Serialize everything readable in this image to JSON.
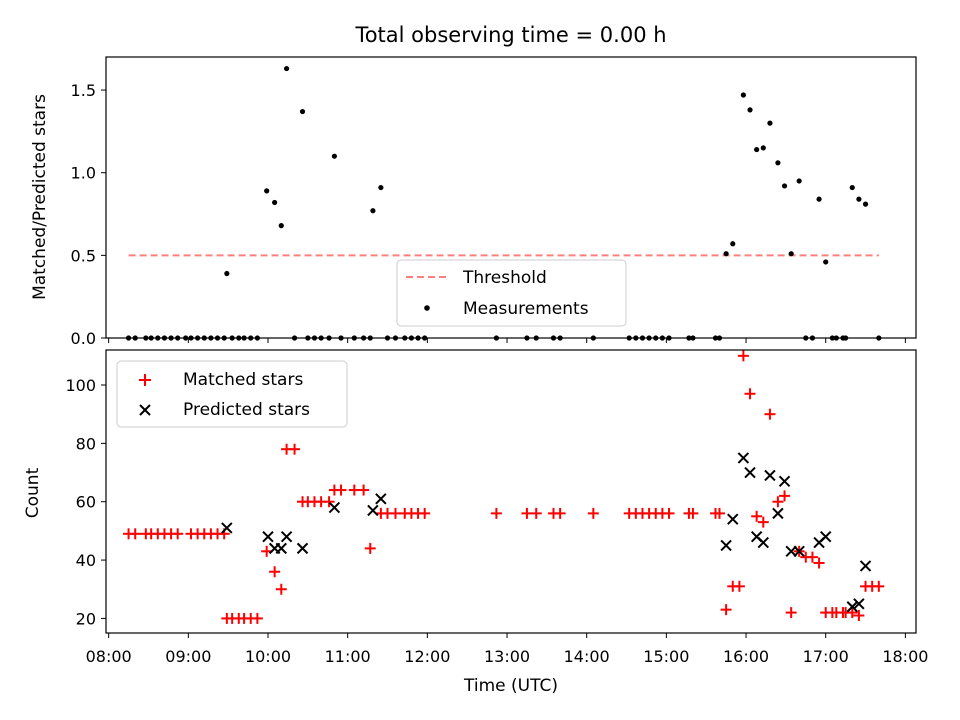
{
  "chart_data": [
    {
      "type": "scatter",
      "title": "Total observing time = 0.00 h",
      "xlabel": "",
      "ylabel": "Matched/Predicted stars",
      "ylim": [
        0,
        1.7
      ],
      "yticks": [
        0.0,
        0.5,
        1.0,
        1.5
      ],
      "ytick_labels": [
        "0.0",
        "0.5",
        "1.0",
        "1.5"
      ],
      "legend": {
        "location": "lower-center",
        "entries": [
          "Threshold",
          "Measurements"
        ]
      },
      "threshold": {
        "name": "Threshold",
        "value": 0.5,
        "x_range": [
          "08:15",
          "17:40"
        ],
        "color": "#ff7f7f",
        "style": "dashed"
      },
      "series": [
        {
          "name": "Measurements",
          "color": "#000000",
          "marker": "dot",
          "points": [
            [
              "08:15",
              0
            ],
            [
              "08:20",
              0
            ],
            [
              "08:28",
              0
            ],
            [
              "08:32",
              0
            ],
            [
              "08:37",
              0
            ],
            [
              "08:42",
              0
            ],
            [
              "08:47",
              0
            ],
            [
              "08:52",
              0
            ],
            [
              "08:58",
              0
            ],
            [
              "09:02",
              0
            ],
            [
              "09:07",
              0
            ],
            [
              "09:12",
              0
            ],
            [
              "09:17",
              0
            ],
            [
              "09:22",
              0
            ],
            [
              "09:27",
              0
            ],
            [
              "09:29",
              0.39
            ],
            [
              "09:33",
              0
            ],
            [
              "09:38",
              0
            ],
            [
              "09:42",
              0
            ],
            [
              "09:47",
              0
            ],
            [
              "09:52",
              0
            ],
            [
              "09:59",
              0.89
            ],
            [
              "10:05",
              0.82
            ],
            [
              "10:10",
              0.68
            ],
            [
              "10:14",
              1.63
            ],
            [
              "10:20",
              0
            ],
            [
              "10:26",
              1.37
            ],
            [
              "10:30",
              0
            ],
            [
              "10:35",
              0
            ],
            [
              "10:40",
              0
            ],
            [
              "10:46",
              0
            ],
            [
              "10:50",
              1.1
            ],
            [
              "10:55",
              0
            ],
            [
              "11:05",
              0
            ],
            [
              "11:12",
              0
            ],
            [
              "11:17",
              0
            ],
            [
              "11:19",
              0.77
            ],
            [
              "11:25",
              0.91
            ],
            [
              "11:30",
              0
            ],
            [
              "11:36",
              0
            ],
            [
              "11:43",
              0
            ],
            [
              "11:48",
              0
            ],
            [
              "11:53",
              0
            ],
            [
              "11:58",
              0
            ],
            [
              "12:52",
              0
            ],
            [
              "13:15",
              0
            ],
            [
              "13:22",
              0
            ],
            [
              "13:35",
              0
            ],
            [
              "13:40",
              0
            ],
            [
              "14:05",
              0
            ],
            [
              "14:32",
              0
            ],
            [
              "14:37",
              0
            ],
            [
              "14:42",
              0
            ],
            [
              "14:47",
              0
            ],
            [
              "14:52",
              0
            ],
            [
              "14:57",
              0
            ],
            [
              "15:02",
              0
            ],
            [
              "15:17",
              0
            ],
            [
              "15:20",
              0
            ],
            [
              "15:37",
              0
            ],
            [
              "15:40",
              0
            ],
            [
              "15:45",
              0.51
            ],
            [
              "15:50",
              0.57
            ],
            [
              "15:58",
              1.47
            ],
            [
              "16:03",
              1.38
            ],
            [
              "16:08",
              1.14
            ],
            [
              "16:13",
              1.15
            ],
            [
              "16:18",
              1.3
            ],
            [
              "16:24",
              1.06
            ],
            [
              "16:29",
              0.92
            ],
            [
              "16:34",
              0.51
            ],
            [
              "16:40",
              0.95
            ],
            [
              "16:45",
              0
            ],
            [
              "16:50",
              0
            ],
            [
              "16:55",
              0.84
            ],
            [
              "17:00",
              0.46
            ],
            [
              "17:05",
              0
            ],
            [
              "17:08",
              0
            ],
            [
              "17:13",
              0
            ],
            [
              "17:15",
              0
            ],
            [
              "17:20",
              0.91
            ],
            [
              "17:25",
              0.84
            ],
            [
              "17:30",
              0.81
            ],
            [
              "17:40",
              0
            ]
          ]
        }
      ]
    },
    {
      "type": "scatter",
      "title": "",
      "xlabel": "Time (UTC)",
      "ylabel": "Count",
      "xlim": [
        "07:58",
        "18:08"
      ],
      "xticks": [
        "08:00",
        "09:00",
        "10:00",
        "11:00",
        "12:00",
        "13:00",
        "14:00",
        "15:00",
        "16:00",
        "17:00",
        "18:00"
      ],
      "ylim": [
        15,
        112
      ],
      "yticks": [
        20,
        40,
        60,
        80,
        100
      ],
      "ytick_labels": [
        "20",
        "40",
        "60",
        "80",
        "100"
      ],
      "legend": {
        "location": "top-left",
        "entries": [
          "Matched stars",
          "Predicted stars"
        ]
      },
      "series": [
        {
          "name": "Matched stars",
          "color": "#ff0000",
          "marker": "plus",
          "points": [
            [
              "08:15",
              49
            ],
            [
              "08:20",
              49
            ],
            [
              "08:28",
              49
            ],
            [
              "08:32",
              49
            ],
            [
              "08:37",
              49
            ],
            [
              "08:42",
              49
            ],
            [
              "08:47",
              49
            ],
            [
              "08:52",
              49
            ],
            [
              "09:02",
              49
            ],
            [
              "09:07",
              49
            ],
            [
              "09:12",
              49
            ],
            [
              "09:17",
              49
            ],
            [
              "09:22",
              49
            ],
            [
              "09:27",
              49
            ],
            [
              "09:29",
              20
            ],
            [
              "09:33",
              20
            ],
            [
              "09:38",
              20
            ],
            [
              "09:42",
              20
            ],
            [
              "09:47",
              20
            ],
            [
              "09:52",
              20
            ],
            [
              "09:59",
              43
            ],
            [
              "10:05",
              36
            ],
            [
              "10:10",
              30
            ],
            [
              "10:14",
              78
            ],
            [
              "10:20",
              78
            ],
            [
              "10:26",
              60
            ],
            [
              "10:30",
              60
            ],
            [
              "10:35",
              60
            ],
            [
              "10:40",
              60
            ],
            [
              "10:46",
              60
            ],
            [
              "10:50",
              64
            ],
            [
              "10:55",
              64
            ],
            [
              "11:05",
              64
            ],
            [
              "11:12",
              64
            ],
            [
              "11:17",
              44
            ],
            [
              "11:25",
              56
            ],
            [
              "11:30",
              56
            ],
            [
              "11:36",
              56
            ],
            [
              "11:43",
              56
            ],
            [
              "11:48",
              56
            ],
            [
              "11:53",
              56
            ],
            [
              "11:58",
              56
            ],
            [
              "12:52",
              56
            ],
            [
              "13:15",
              56
            ],
            [
              "13:22",
              56
            ],
            [
              "13:35",
              56
            ],
            [
              "13:40",
              56
            ],
            [
              "14:05",
              56
            ],
            [
              "14:32",
              56
            ],
            [
              "14:37",
              56
            ],
            [
              "14:42",
              56
            ],
            [
              "14:47",
              56
            ],
            [
              "14:52",
              56
            ],
            [
              "14:57",
              56
            ],
            [
              "15:02",
              56
            ],
            [
              "15:17",
              56
            ],
            [
              "15:20",
              56
            ],
            [
              "15:37",
              56
            ],
            [
              "15:40",
              56
            ],
            [
              "15:45",
              23
            ],
            [
              "15:50",
              31
            ],
            [
              "15:55",
              31
            ],
            [
              "15:58",
              110
            ],
            [
              "16:03",
              97
            ],
            [
              "16:08",
              55
            ],
            [
              "16:13",
              53
            ],
            [
              "16:18",
              90
            ],
            [
              "16:24",
              60
            ],
            [
              "16:29",
              62
            ],
            [
              "16:34",
              22
            ],
            [
              "16:40",
              43
            ],
            [
              "16:45",
              41
            ],
            [
              "16:50",
              41
            ],
            [
              "16:55",
              39
            ],
            [
              "17:00",
              22
            ],
            [
              "17:05",
              22
            ],
            [
              "17:08",
              22
            ],
            [
              "17:13",
              22
            ],
            [
              "17:15",
              22
            ],
            [
              "17:20",
              22
            ],
            [
              "17:25",
              21
            ],
            [
              "17:30",
              31
            ],
            [
              "17:35",
              31
            ],
            [
              "17:40",
              31
            ]
          ]
        },
        {
          "name": "Predicted stars",
          "color": "#000000",
          "marker": "x",
          "points": [
            [
              "09:29",
              51
            ],
            [
              "10:00",
              48
            ],
            [
              "10:05",
              44
            ],
            [
              "10:10",
              44
            ],
            [
              "10:14",
              48
            ],
            [
              "10:26",
              44
            ],
            [
              "10:50",
              58
            ],
            [
              "11:19",
              57
            ],
            [
              "11:25",
              61
            ],
            [
              "15:45",
              45
            ],
            [
              "15:50",
              54
            ],
            [
              "15:58",
              75
            ],
            [
              "16:03",
              70
            ],
            [
              "16:08",
              48
            ],
            [
              "16:13",
              46
            ],
            [
              "16:18",
              69
            ],
            [
              "16:24",
              56
            ],
            [
              "16:29",
              67
            ],
            [
              "16:34",
              43
            ],
            [
              "16:40",
              43
            ],
            [
              "16:55",
              46
            ],
            [
              "17:00",
              48
            ],
            [
              "17:20",
              24
            ],
            [
              "17:25",
              25
            ],
            [
              "17:30",
              38
            ]
          ]
        }
      ]
    }
  ]
}
